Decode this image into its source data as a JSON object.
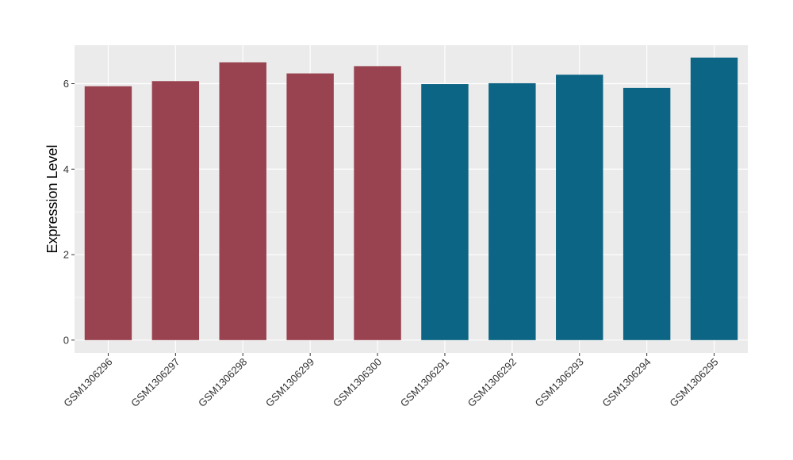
{
  "chart_data": {
    "type": "bar",
    "title": "",
    "xlabel": "",
    "ylabel": "Expression Level",
    "categories": [
      "GSM1306296",
      "GSM1306297",
      "GSM1306298",
      "GSM1306299",
      "GSM1306300",
      "GSM1306291",
      "GSM1306292",
      "GSM1306293",
      "GSM1306294",
      "GSM1306295"
    ],
    "values": [
      5.94,
      6.06,
      6.5,
      6.24,
      6.41,
      5.99,
      6.01,
      6.21,
      5.9,
      6.61
    ],
    "bar_colors": [
      "#9a4350",
      "#9a4350",
      "#9a4350",
      "#9a4350",
      "#9a4350",
      "#0c6584",
      "#0c6584",
      "#0c6584",
      "#0c6584",
      "#0c6584"
    ],
    "ylim": [
      -0.3,
      6.9
    ],
    "yticks": [
      0,
      2,
      4,
      6
    ],
    "grid": true,
    "panel_background": "#ebebeb",
    "gridline_color": "#ffffff"
  }
}
